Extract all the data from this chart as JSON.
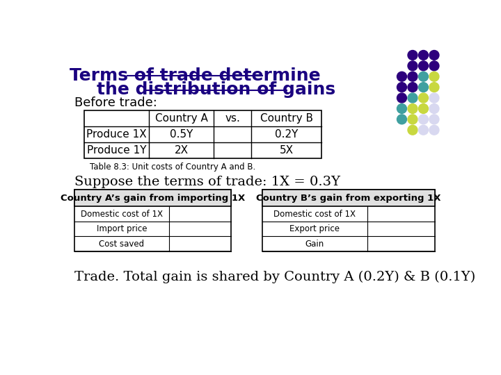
{
  "title_line1": "Terms of trade determine",
  "title_line2": "the distribution of gains",
  "title_color": "#1a0080",
  "before_trade_label": "Before trade:",
  "table1_headers": [
    "",
    "Country A",
    "vs.",
    "Country B"
  ],
  "table1_rows": [
    [
      "Produce 1X",
      "0.5Y",
      "",
      "0.2Y"
    ],
    [
      "Produce 1Y",
      "2X",
      "",
      "5X"
    ]
  ],
  "table_caption": "Table 8.3: Unit costs of Country A and B.",
  "suppose_text": "Suppose the terms of trade: 1X = 0.3Y",
  "table2a_header": "Country A’s gain from importing 1X",
  "table2a_rows": [
    "Domestic cost of 1X",
    "Import price",
    "Cost saved"
  ],
  "table2b_header": "Country B’s gain from exporting 1X",
  "table2b_rows": [
    "Domestic cost of 1X",
    "Export price",
    "Gain"
  ],
  "footer_text": "Trade. Total gain is shared by Country A (0.2Y) & B (0.1Y)",
  "dot_rows": [
    [
      "#2d007d",
      "#2d007d",
      "#2d007d"
    ],
    [
      "#2d007d",
      "#2d007d",
      "#2d007d"
    ],
    [
      "#2d007d",
      "#2d007d",
      "#40a0a0",
      "#c8d840"
    ],
    [
      "#2d007d",
      "#2d007d",
      "#40a0a0",
      "#c8d840"
    ],
    [
      "#2d007d",
      "#40a0a0",
      "#c8d840",
      "#d8d8f0"
    ],
    [
      "#40a0a0",
      "#c8d840",
      "#c8d840",
      "#d8d8f0"
    ],
    [
      "#40a0a0",
      "#c8d840",
      "#d8d8f0",
      "#d8d8f0"
    ],
    [
      "#c8d840",
      "#d8d8f0",
      "#d8d8f0"
    ]
  ],
  "bg_color": "#ffffff"
}
